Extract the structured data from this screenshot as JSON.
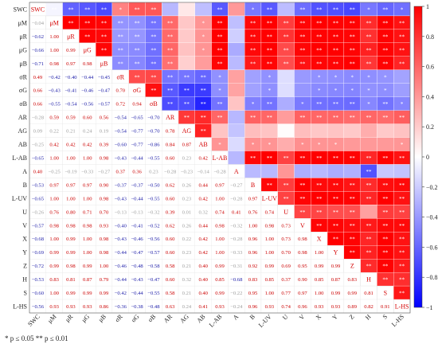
{
  "chart_data": {
    "type": "heatmap",
    "title": "",
    "labels": [
      "SWC",
      "μM",
      "μR",
      "μG",
      "μB",
      "σR",
      "σG",
      "σB",
      "AR",
      "AG",
      "AB",
      "L-AB",
      "A",
      "B",
      "L-UV",
      "U",
      "V",
      "X",
      "Y",
      "Z",
      "H",
      "S",
      "L-HS"
    ],
    "lower": [
      [],
      [
        -0.04
      ],
      [
        -0.62,
        1.0
      ],
      [
        -0.66,
        1.0,
        0.99
      ],
      [
        -0.71,
        0.98,
        0.97,
        0.98
      ],
      [
        0.49,
        -0.42,
        -0.4,
        -0.44,
        -0.45
      ],
      [
        0.66,
        -0.43,
        -0.41,
        -0.46,
        -0.47,
        0.7
      ],
      [
        0.66,
        -0.55,
        -0.54,
        -0.56,
        -0.57,
        0.72,
        0.94
      ],
      [
        -0.28,
        0.59,
        0.59,
        0.6,
        0.56,
        -0.54,
        -0.65,
        -0.7
      ],
      [
        0.09,
        0.22,
        0.21,
        0.24,
        0.19,
        -0.54,
        -0.77,
        -0.7,
        0.78
      ],
      [
        -0.25,
        0.42,
        0.42,
        0.42,
        0.39,
        -0.6,
        -0.77,
        -0.86,
        0.84,
        0.87
      ],
      [
        -0.65,
        1.0,
        1.0,
        1.0,
        0.98,
        -0.43,
        -0.44,
        -0.55,
        0.6,
        0.23,
        0.42
      ],
      [
        0.4,
        -0.25,
        -0.19,
        -0.33,
        -0.27,
        0.37,
        0.36,
        0.23,
        -0.28,
        -0.23,
        -0.14,
        -0.28
      ],
      [
        -0.53,
        0.97,
        0.97,
        0.97,
        0.9,
        -0.37,
        -0.37,
        -0.5,
        0.62,
        0.26,
        0.44,
        0.97,
        -0.27
      ],
      [
        -0.65,
        1.0,
        1.0,
        1.0,
        0.98,
        -0.43,
        -0.44,
        -0.55,
        0.6,
        0.23,
        0.42,
        1.0,
        -0.28,
        0.97
      ],
      [
        -0.26,
        0.76,
        0.8,
        0.71,
        0.7,
        -0.13,
        -0.13,
        -0.32,
        0.39,
        0.01,
        0.32,
        0.74,
        0.41,
        0.76,
        0.74
      ],
      [
        -0.57,
        0.98,
        0.98,
        0.98,
        0.93,
        -0.4,
        -0.41,
        -0.52,
        0.62,
        0.26,
        0.44,
        0.98,
        -0.32,
        1.0,
        0.98,
        0.73
      ],
      [
        -0.68,
        1.0,
        0.99,
        1.0,
        0.98,
        -0.43,
        -0.46,
        -0.56,
        0.6,
        0.22,
        0.42,
        1.0,
        -0.28,
        0.96,
        1.0,
        0.73,
        0.98
      ],
      [
        -0.69,
        0.99,
        0.99,
        1.0,
        0.98,
        -0.44,
        -0.47,
        -0.57,
        0.6,
        0.23,
        0.42,
        1.0,
        -0.33,
        0.96,
        1.0,
        0.7,
        0.98,
        1.0
      ],
      [
        -0.72,
        0.99,
        0.98,
        0.99,
        1.0,
        -0.46,
        -0.48,
        -0.58,
        0.58,
        0.21,
        0.4,
        0.99,
        -0.31,
        0.92,
        0.99,
        0.69,
        0.95,
        0.99,
        0.99
      ],
      [
        -0.53,
        0.83,
        0.81,
        0.87,
        0.79,
        -0.44,
        -0.43,
        -0.47,
        0.6,
        0.32,
        0.4,
        0.85,
        -0.68,
        0.83,
        0.85,
        0.37,
        0.9,
        0.85,
        0.87,
        0.83
      ],
      [
        -0.6,
        1.0,
        0.99,
        0.99,
        0.99,
        -0.42,
        -0.44,
        -0.55,
        0.58,
        0.21,
        0.4,
        0.99,
        -0.22,
        0.95,
        1.0,
        0.77,
        0.97,
        1.0,
        0.99,
        0.99,
        0.81
      ],
      [
        -0.56,
        0.93,
        0.93,
        0.93,
        0.86,
        -0.36,
        -0.38,
        -0.48,
        0.63,
        0.24,
        0.41,
        0.93,
        -0.24,
        0.96,
        0.93,
        0.74,
        0.96,
        0.93,
        0.93,
        0.89,
        0.82,
        0.91
      ]
    ],
    "stars_upper": [
      [],
      [
        "**"
      ],
      [
        "**",
        "**"
      ],
      [
        "**",
        "**",
        "**"
      ],
      [
        "**",
        "**",
        "**",
        "**"
      ],
      [
        "*",
        "**",
        "**",
        "**",
        "**"
      ],
      [
        "**",
        "**",
        "**",
        "**",
        "**",
        "**"
      ],
      [
        "**",
        "**",
        "**",
        "**",
        "**",
        "**",
        "**"
      ],
      [
        "",
        "**",
        "**",
        "**",
        "**",
        "**",
        "**",
        "**"
      ],
      [
        "",
        "",
        "",
        "",
        "",
        "**",
        "**",
        "**",
        "**"
      ],
      [
        "",
        "*",
        "*",
        "*",
        "",
        "**",
        "**",
        "**",
        "**",
        "**"
      ],
      [
        "**",
        "**",
        "**",
        "**",
        "**",
        "*",
        "*",
        "**",
        "**",
        "",
        "*"
      ],
      [
        "",
        "",
        "",
        "",
        "",
        "",
        "",
        "",
        "",
        "",
        "",
        ""
      ],
      [
        "*",
        "**",
        "**",
        "**",
        "**",
        "",
        "",
        "*",
        "**",
        "",
        "*",
        "**",
        ""
      ],
      [
        "**",
        "**",
        "**",
        "**",
        "**",
        "*",
        "*",
        "**",
        "**",
        "",
        "*",
        "**",
        "",
        "**"
      ],
      [
        "",
        "**",
        "**",
        "**",
        "**",
        "",
        "",
        "",
        "",
        "",
        "",
        "**",
        "",
        "**",
        "**"
      ],
      [
        "**",
        "**",
        "**",
        "**",
        "**",
        "",
        "",
        "*",
        "**",
        "",
        "*",
        "**",
        "",
        "**",
        "**",
        "**"
      ],
      [
        "**",
        "**",
        "**",
        "**",
        "**",
        "*",
        "*",
        "**",
        "**",
        "",
        "*",
        "**",
        "",
        "**",
        "**",
        "**",
        "**"
      ],
      [
        "**",
        "**",
        "**",
        "**",
        "**",
        "*",
        "*",
        "**",
        "**",
        "",
        "*",
        "**",
        "",
        "**",
        "**",
        "**",
        "**",
        "**"
      ],
      [
        "**",
        "**",
        "**",
        "**",
        "**",
        "*",
        "*",
        "**",
        "**",
        "",
        "",
        "**",
        "",
        "**",
        "**",
        "**",
        "**",
        "**",
        "**"
      ],
      [
        "*",
        "**",
        "**",
        "**",
        "**",
        "*",
        "*",
        "*",
        "**",
        "",
        "",
        "**",
        "**",
        "**",
        "**",
        "",
        "**",
        "**",
        "**",
        "**"
      ],
      [
        "**",
        "**",
        "**",
        "**",
        "**",
        "*",
        "*",
        "**",
        "**",
        "",
        "",
        "**",
        "",
        "**",
        "**",
        "**",
        "**",
        "**",
        "**",
        "**",
        "**"
      ],
      [
        "*",
        "**",
        "**",
        "**",
        "**",
        "",
        "",
        "*",
        "**",
        "",
        "*",
        "**",
        "",
        "**",
        "**",
        "**",
        "**",
        "**",
        "**",
        "**",
        "**",
        "**"
      ]
    ],
    "colorbar": {
      "ticks": [
        1,
        0.8,
        0.6,
        0.4,
        0.2,
        0,
        -0.2,
        -0.4,
        -0.6,
        -0.8,
        -1
      ],
      "range": [
        -1,
        1
      ]
    },
    "colors": {
      "positive": "#ff0000",
      "negative": "#0000ff",
      "neutral": "#ffffff",
      "diagonal": "#d40000"
    },
    "footnote": "* p ≤ 0.05  ** p ≤ 0.01"
  }
}
